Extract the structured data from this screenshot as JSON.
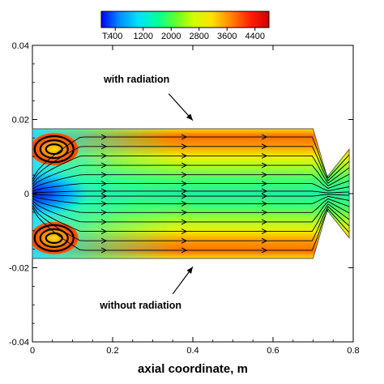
{
  "chart_data": {
    "type": "heatmap",
    "title": "",
    "xlabel": "axial coordinate, m",
    "ylabel": "",
    "xlim": [
      0,
      0.8
    ],
    "ylim": [
      -0.04,
      0.04
    ],
    "x_ticks": [
      "0",
      "0.2",
      "0.4",
      "0.6",
      "0.8"
    ],
    "y_ticks": [
      "-0.04",
      "-0.02",
      "0",
      "0.02",
      "0.04"
    ],
    "grid": false,
    "colorbar": {
      "variable_label": "T:",
      "tick_labels": [
        "400",
        "1200",
        "2000",
        "2800",
        "3600",
        "4400"
      ],
      "range": [
        0,
        4800
      ],
      "colors": [
        "#0000ff",
        "#0090ff",
        "#00e0ff",
        "#00ffa0",
        "#60ff30",
        "#d0ff00",
        "#ffe000",
        "#ff8000",
        "#ff2000",
        "#d00000"
      ]
    },
    "domain_profile": [
      {
        "x": 0.0,
        "r": 0.0175
      },
      {
        "x": 0.7,
        "r": 0.0175
      },
      {
        "x": 0.735,
        "r": 0.0045
      },
      {
        "x": 0.79,
        "r": 0.012
      }
    ],
    "annotations": [
      {
        "text": "with radiation",
        "x": 0.26,
        "y": 0.03,
        "arrow_to": [
          0.4,
          0.018
        ]
      },
      {
        "text": "without radiation",
        "x": 0.27,
        "y": -0.031,
        "arrow_to": [
          0.4,
          -0.018
        ]
      }
    ],
    "recirculation_zones": [
      {
        "center_x": 0.05,
        "center_y": 0.012
      },
      {
        "center_x": 0.05,
        "center_y": -0.012
      }
    ]
  }
}
